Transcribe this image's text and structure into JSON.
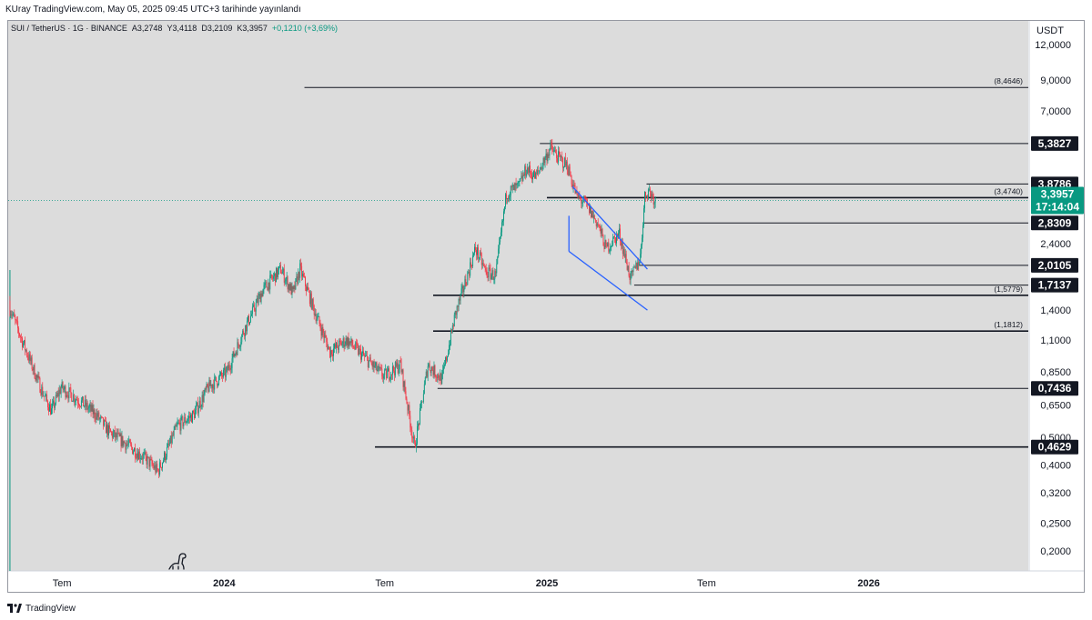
{
  "header": {
    "publish_line": "KUray TradingView.com, May 05, 2025 09:45 UTC+3 tarihinde yayınlandı"
  },
  "symbol_bar": {
    "symbol": "SUI / TetherUS · 1G · BINANCE",
    "open": "A3,2748",
    "high": "Y3,4118",
    "low": "D3,2109",
    "close": "K3,3957",
    "change": "+0,1210 (+3,69%)"
  },
  "footer": {
    "brand": "TradingView"
  },
  "colors": {
    "plot_bg": "#dcdcdc",
    "up": "#089981",
    "down": "#f23645",
    "channel": "#2962ff",
    "level": "#131722",
    "price_badge": "#089981",
    "level_badge": "#131722"
  },
  "icons": {
    "dino": "dinosaur-icon",
    "logo": "tradingview-logo-icon"
  },
  "chart_data": {
    "type": "candlestick",
    "title": "SUI / TetherUS · 1G · BINANCE",
    "y_scale": "log",
    "currency": "USDT",
    "ylim": [
      0.17,
      14.5
    ],
    "y_ticks": [
      12.0,
      9.0,
      7.0,
      5.5,
      4.3,
      3.4,
      2.4,
      1.8,
      1.4,
      1.1,
      0.85,
      0.65,
      0.5,
      0.4,
      0.32,
      0.25,
      0.2
    ],
    "y_tick_labels": [
      "12,0000",
      "9,0000",
      "7,0000",
      "",
      "",
      "",
      "2,4000",
      "",
      "1,4000",
      "1,1000",
      "0,8500",
      "0,6500",
      "0,5000",
      "0,4000",
      "0,3200",
      "0,2500",
      "0,2000"
    ],
    "xlim": [
      "2023-05-01",
      "2026-07-01"
    ],
    "x_ticks": [
      {
        "date": "2023-07-01",
        "label": "Tem",
        "bold": false
      },
      {
        "date": "2024-01-01",
        "label": "2024",
        "bold": true
      },
      {
        "date": "2024-07-01",
        "label": "Tem",
        "bold": false
      },
      {
        "date": "2025-01-01",
        "label": "2025",
        "bold": true
      },
      {
        "date": "2025-07-01",
        "label": "Tem",
        "bold": false
      },
      {
        "date": "2026-01-01",
        "label": "2026",
        "bold": true
      }
    ],
    "last_price": {
      "value": 3.3957,
      "label": "3,3957",
      "countdown": "17:14:04"
    },
    "listing_date": "2023-05-03",
    "path_anchors": [
      {
        "date": "2023-05-03",
        "price": 1.45
      },
      {
        "date": "2023-05-20",
        "price": 1.05
      },
      {
        "date": "2023-06-10",
        "price": 0.72
      },
      {
        "date": "2023-06-20",
        "price": 0.62
      },
      {
        "date": "2023-07-01",
        "price": 0.75
      },
      {
        "date": "2023-07-20",
        "price": 0.68
      },
      {
        "date": "2023-08-10",
        "price": 0.6
      },
      {
        "date": "2023-08-25",
        "price": 0.52
      },
      {
        "date": "2023-09-15",
        "price": 0.47
      },
      {
        "date": "2023-10-05",
        "price": 0.42
      },
      {
        "date": "2023-10-19",
        "price": 0.38
      },
      {
        "date": "2023-11-10",
        "price": 0.55
      },
      {
        "date": "2023-11-28",
        "price": 0.6
      },
      {
        "date": "2023-12-15",
        "price": 0.75
      },
      {
        "date": "2024-01-05",
        "price": 0.85
      },
      {
        "date": "2024-01-25",
        "price": 1.2
      },
      {
        "date": "2024-02-15",
        "price": 1.65
      },
      {
        "date": "2024-03-06",
        "price": 1.95
      },
      {
        "date": "2024-03-20",
        "price": 1.6
      },
      {
        "date": "2024-03-28",
        "price": 1.95
      },
      {
        "date": "2024-04-13",
        "price": 1.4
      },
      {
        "date": "2024-05-01",
        "price": 1.0
      },
      {
        "date": "2024-05-20",
        "price": 1.1
      },
      {
        "date": "2024-06-10",
        "price": 0.95
      },
      {
        "date": "2024-07-01",
        "price": 0.82
      },
      {
        "date": "2024-07-20",
        "price": 0.9
      },
      {
        "date": "2024-08-05",
        "price": 0.46
      },
      {
        "date": "2024-08-20",
        "price": 0.9
      },
      {
        "date": "2024-09-05",
        "price": 0.8
      },
      {
        "date": "2024-09-20",
        "price": 1.35
      },
      {
        "date": "2024-10-05",
        "price": 1.9
      },
      {
        "date": "2024-10-13",
        "price": 2.3
      },
      {
        "date": "2024-10-25",
        "price": 1.9
      },
      {
        "date": "2024-11-05",
        "price": 1.85
      },
      {
        "date": "2024-11-17",
        "price": 3.6
      },
      {
        "date": "2024-12-01",
        "price": 3.8
      },
      {
        "date": "2024-12-10",
        "price": 4.4
      },
      {
        "date": "2024-12-20",
        "price": 4.1
      },
      {
        "date": "2025-01-06",
        "price": 5.2
      },
      {
        "date": "2025-01-15",
        "price": 4.8
      },
      {
        "date": "2025-01-25",
        "price": 4.5
      },
      {
        "date": "2025-02-05",
        "price": 3.5
      },
      {
        "date": "2025-02-15",
        "price": 3.3
      },
      {
        "date": "2025-03-01",
        "price": 2.8
      },
      {
        "date": "2025-03-10",
        "price": 2.3
      },
      {
        "date": "2025-03-25",
        "price": 2.6
      },
      {
        "date": "2025-04-07",
        "price": 1.8
      },
      {
        "date": "2025-04-18",
        "price": 2.15
      },
      {
        "date": "2025-04-23",
        "price": 3.5
      },
      {
        "date": "2025-04-27",
        "price": 3.7
      },
      {
        "date": "2025-05-05",
        "price": 3.3957
      }
    ],
    "levels": [
      {
        "price": 8.4646,
        "label": "(8,4646)",
        "start": "2024-04-01",
        "badge": false
      },
      {
        "price": 5.3827,
        "label": "5,3827",
        "start": "2024-12-24",
        "badge": true
      },
      {
        "price": 3.8786,
        "label": "3,8786",
        "start": "2025-04-24",
        "badge": true
      },
      {
        "price": 3.474,
        "label": "(3,4740)",
        "start": "2025-01-01",
        "badge": false,
        "thick": true
      },
      {
        "price": 2.8309,
        "label": "2,8309",
        "start": "2025-04-20",
        "badge": true
      },
      {
        "price": 2.0105,
        "label": "2,0105",
        "start": "2025-04-15",
        "badge": true
      },
      {
        "price": 1.7137,
        "label": "1,7137",
        "start": "2025-04-10",
        "badge": true
      },
      {
        "price": 1.5779,
        "label": "(1,5779)",
        "start": "2024-08-25",
        "badge": false,
        "thick": true
      },
      {
        "price": 1.1812,
        "label": "(1,1812)",
        "start": "2024-08-25",
        "badge": false,
        "thick": true
      },
      {
        "price": 0.7436,
        "label": "0,7436",
        "start": "2024-08-30",
        "badge": true
      },
      {
        "price": 0.4629,
        "label": "0,4629",
        "start": "2024-06-20",
        "badge": true,
        "thick": true
      }
    ],
    "channel": [
      {
        "from": {
          "date": "2025-01-30",
          "price": 3.8
        },
        "to": {
          "date": "2025-04-25",
          "price": 1.95
        }
      },
      {
        "from": {
          "date": "2025-01-26",
          "price": 2.25
        },
        "to": {
          "date": "2025-04-25",
          "price": 1.4
        }
      },
      {
        "from": {
          "date": "2025-01-26",
          "price": 3.0
        },
        "to": {
          "date": "2025-01-26",
          "price": 2.25
        }
      }
    ]
  }
}
